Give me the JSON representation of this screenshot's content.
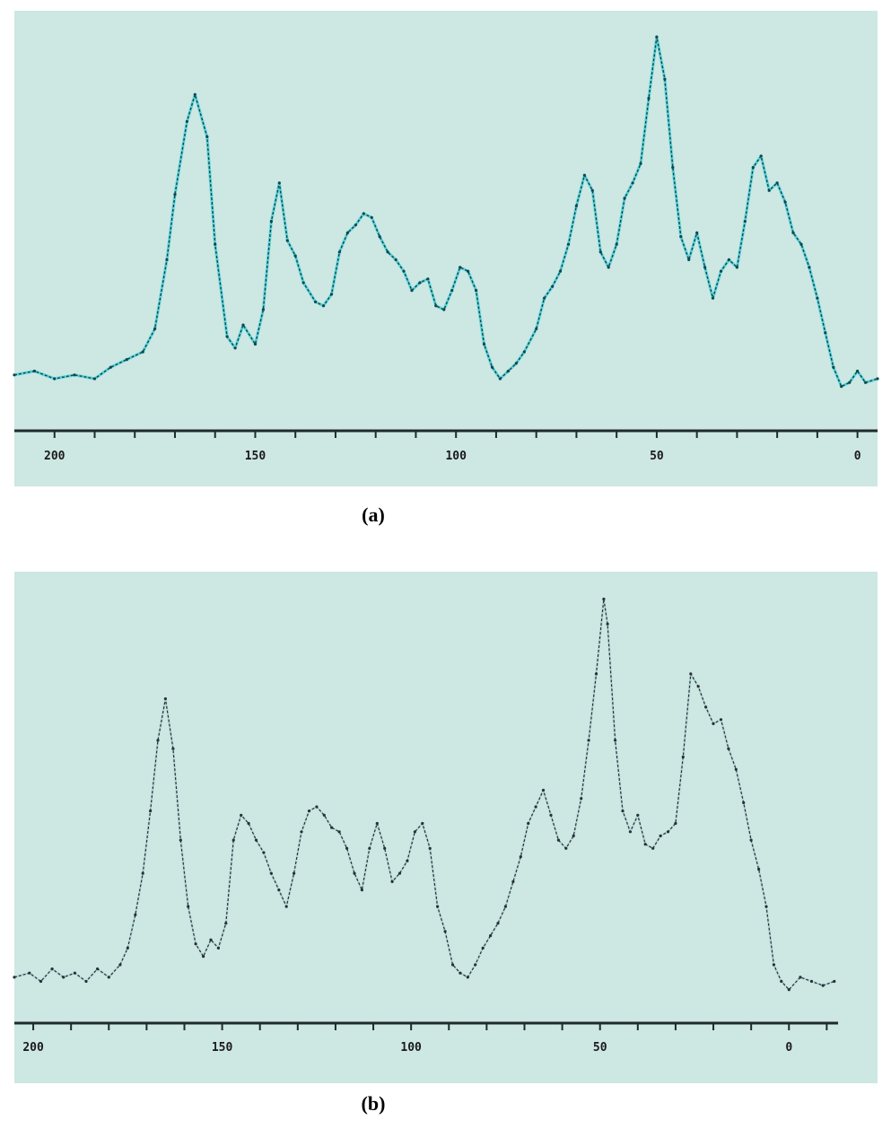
{
  "chart_data": [
    {
      "type": "line",
      "label": "(a)",
      "xlim": [
        210,
        -5
      ],
      "xticks": [
        200,
        150,
        100,
        50,
        0
      ],
      "xticklabels": [
        "200",
        "150",
        "100",
        "50",
        "0"
      ],
      "ylim": [
        0,
        1
      ],
      "grid": false,
      "line_color": "#13474c",
      "highlight_color": "#5fd6dc",
      "series": [
        {
          "x": [
            210,
            205,
            200,
            195,
            190,
            186,
            182,
            178,
            175,
            172,
            170,
            167,
            165,
            162,
            160,
            157,
            155,
            153,
            150,
            148,
            146,
            144,
            142,
            140,
            138,
            135,
            133,
            131,
            129,
            127,
            125,
            123,
            121,
            119,
            117,
            115,
            113,
            111,
            109,
            107,
            105,
            103,
            101,
            99,
            97,
            95,
            93,
            91,
            89,
            87,
            85,
            83,
            80,
            78,
            76,
            74,
            72,
            70,
            68,
            66,
            64,
            62,
            60,
            58,
            56,
            54,
            52,
            50,
            48,
            46,
            44,
            42,
            40,
            38,
            36,
            34,
            32,
            30,
            28,
            26,
            24,
            22,
            20,
            18,
            16,
            14,
            12,
            10,
            8,
            6,
            4,
            2,
            0,
            -2,
            -5
          ],
          "y": [
            0.08,
            0.09,
            0.07,
            0.08,
            0.07,
            0.1,
            0.12,
            0.14,
            0.2,
            0.38,
            0.55,
            0.74,
            0.81,
            0.7,
            0.42,
            0.18,
            0.15,
            0.21,
            0.16,
            0.25,
            0.48,
            0.58,
            0.43,
            0.39,
            0.32,
            0.27,
            0.26,
            0.29,
            0.4,
            0.45,
            0.47,
            0.5,
            0.49,
            0.44,
            0.4,
            0.38,
            0.35,
            0.3,
            0.32,
            0.33,
            0.26,
            0.25,
            0.3,
            0.36,
            0.35,
            0.3,
            0.16,
            0.1,
            0.07,
            0.09,
            0.11,
            0.14,
            0.2,
            0.28,
            0.31,
            0.35,
            0.42,
            0.52,
            0.6,
            0.56,
            0.4,
            0.36,
            0.42,
            0.54,
            0.58,
            0.63,
            0.8,
            0.96,
            0.85,
            0.62,
            0.44,
            0.38,
            0.45,
            0.36,
            0.28,
            0.35,
            0.38,
            0.36,
            0.48,
            0.62,
            0.65,
            0.56,
            0.58,
            0.53,
            0.45,
            0.42,
            0.36,
            0.28,
            0.19,
            0.1,
            0.05,
            0.06,
            0.09,
            0.06,
            0.07
          ]
        }
      ]
    },
    {
      "type": "line",
      "label": "(b)",
      "xlim": [
        205,
        -13
      ],
      "xticks": [
        200,
        150,
        100,
        50,
        0
      ],
      "xticklabels": [
        "200",
        "150",
        "100",
        "50",
        "0"
      ],
      "ylim": [
        0,
        1
      ],
      "grid": false,
      "line_color": "#2a2f36",
      "highlight_color": "#b7dcd8",
      "series": [
        {
          "x": [
            205,
            201,
            198,
            195,
            192,
            189,
            186,
            183,
            180,
            177,
            175,
            173,
            171,
            169,
            167,
            165,
            163,
            161,
            159,
            157,
            155,
            153,
            151,
            149,
            147,
            145,
            143,
            141,
            139,
            137,
            135,
            133,
            131,
            129,
            127,
            125,
            123,
            121,
            119,
            117,
            115,
            113,
            111,
            109,
            107,
            105,
            103,
            101,
            99,
            97,
            95,
            93,
            91,
            89,
            87,
            85,
            83,
            81,
            79,
            77,
            75,
            73,
            71,
            69,
            67,
            65,
            63,
            61,
            59,
            57,
            55,
            53,
            51,
            49,
            48,
            46,
            44,
            42,
            40,
            38,
            36,
            34,
            32,
            30,
            28,
            26,
            24,
            22,
            20,
            18,
            16,
            14,
            12,
            10,
            8,
            6,
            4,
            2,
            0,
            -3,
            -6,
            -9,
            -12
          ],
          "y": [
            0.05,
            0.06,
            0.04,
            0.07,
            0.05,
            0.06,
            0.04,
            0.07,
            0.05,
            0.08,
            0.12,
            0.2,
            0.3,
            0.45,
            0.62,
            0.72,
            0.6,
            0.38,
            0.22,
            0.13,
            0.1,
            0.14,
            0.12,
            0.18,
            0.38,
            0.44,
            0.42,
            0.38,
            0.35,
            0.3,
            0.26,
            0.22,
            0.3,
            0.4,
            0.45,
            0.46,
            0.44,
            0.41,
            0.4,
            0.36,
            0.3,
            0.26,
            0.36,
            0.42,
            0.36,
            0.28,
            0.3,
            0.33,
            0.4,
            0.42,
            0.36,
            0.22,
            0.16,
            0.08,
            0.06,
            0.05,
            0.08,
            0.12,
            0.15,
            0.18,
            0.22,
            0.28,
            0.34,
            0.42,
            0.46,
            0.5,
            0.44,
            0.38,
            0.36,
            0.39,
            0.48,
            0.62,
            0.78,
            0.96,
            0.9,
            0.62,
            0.45,
            0.4,
            0.44,
            0.37,
            0.36,
            0.39,
            0.4,
            0.42,
            0.58,
            0.78,
            0.75,
            0.7,
            0.66,
            0.67,
            0.6,
            0.55,
            0.47,
            0.38,
            0.31,
            0.22,
            0.08,
            0.04,
            0.02,
            0.05,
            0.04,
            0.03,
            0.04
          ]
        }
      ]
    }
  ],
  "captions": {
    "a": "(a)",
    "b": "(b)"
  }
}
